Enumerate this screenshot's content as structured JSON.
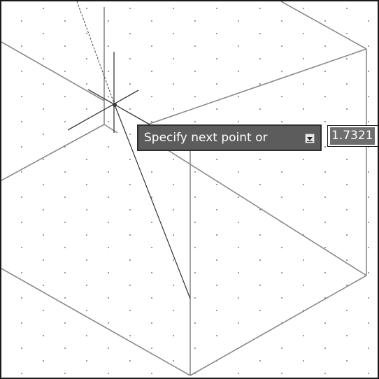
{
  "prompt": {
    "text": "Specify next point or",
    "options_icon": "dropdown-arrow-icon"
  },
  "dynamic_input": {
    "value": "1.7321"
  },
  "colors": {
    "background": "#ffffff",
    "model_lines": "#8a8a8a",
    "grid_dots": "#555555",
    "crosshair": "#3a3a3a",
    "tooltip_bg": "#5c5c5c",
    "tooltip_text": "#ffffff"
  },
  "cursor_icon": "crosshair-cursor-icon"
}
